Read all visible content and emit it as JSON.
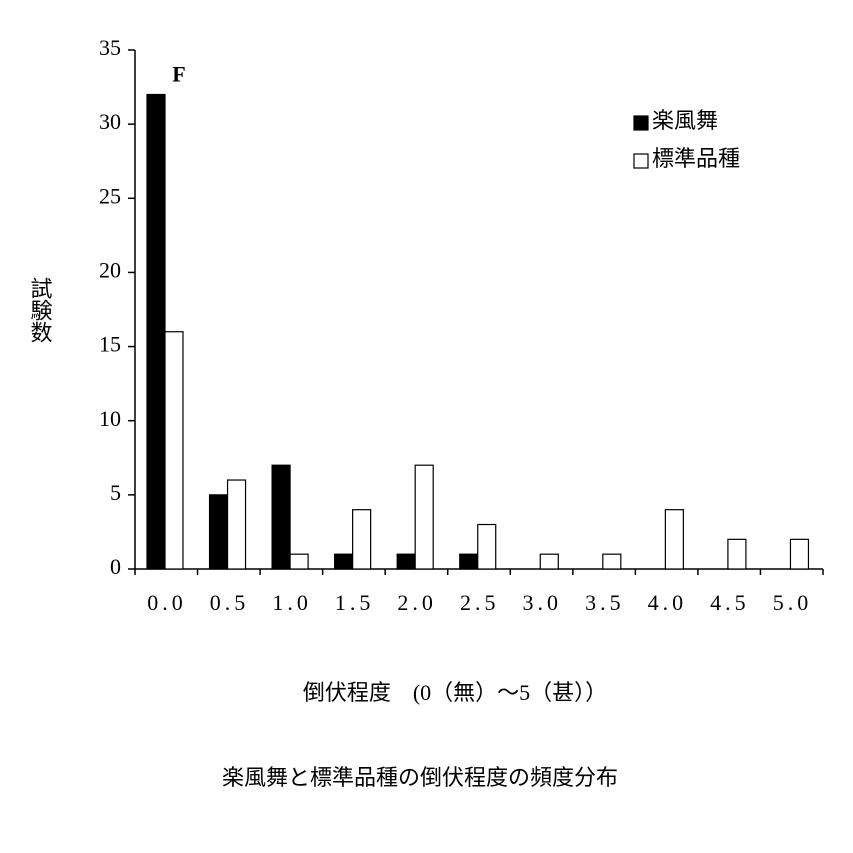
{
  "chart_data": {
    "type": "bar",
    "title": "楽風舞と標準品種の倒伏程度の頻度分布",
    "x_label": "倒伏程度　(0（無）～5（甚））",
    "y_label": "試験数",
    "annotation": "F",
    "categories": [
      "0.0",
      "0.5",
      "1.0",
      "1.5",
      "2.0",
      "2.5",
      "3.0",
      "3.5",
      "4.0",
      "4.5",
      "5.0"
    ],
    "series": [
      {
        "name": "楽風舞",
        "color": "#000000",
        "values": [
          32,
          5,
          7,
          1,
          1,
          1,
          0,
          0,
          0,
          0,
          0
        ]
      },
      {
        "name": "標準品種",
        "color": "#ffffff",
        "values": [
          16,
          6,
          1,
          4,
          7,
          3,
          1,
          1,
          4,
          2,
          2
        ]
      }
    ],
    "ylim": [
      0,
      35
    ],
    "yticks": [
      0,
      5,
      10,
      15,
      20,
      25,
      30,
      35
    ],
    "legend": "upper right"
  }
}
